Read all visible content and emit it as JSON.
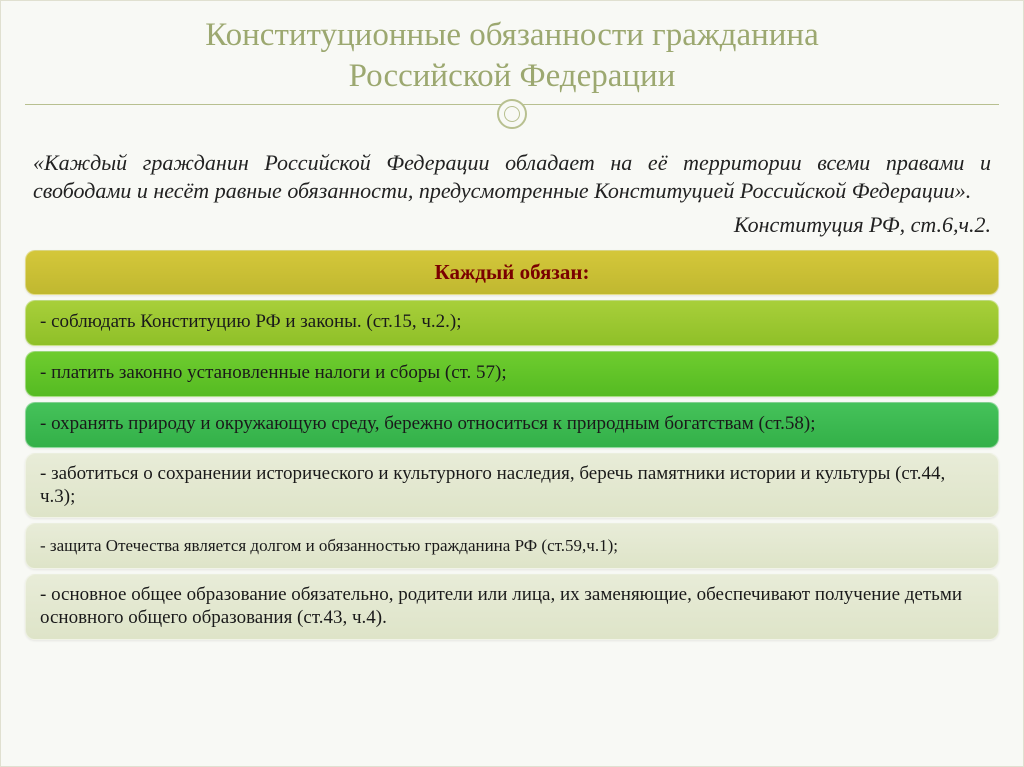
{
  "title_line1": "Конституционные обязанности гражданина",
  "title_line2": "Российской Федерации",
  "quote": "«Каждый гражданин Российской Федерации обладает на её территории всеми правами и свободами и несёт равные обязанности, предусмотренные Конституцией Российской Федерации».",
  "citation": "Конституция РФ, ст.6,ч.2.",
  "bands": [
    {
      "text": "Каждый обязан:",
      "header": true,
      "bg": "linear-gradient(to bottom, #d4c73a 0%, #c0b830 100%)"
    },
    {
      "text": "- соблюдать Конституцию РФ и законы. (ст.15, ч.2.);",
      "bg": "linear-gradient(to bottom, #a8cf3a 0%, #8fc028 100%)",
      "size": "big"
    },
    {
      "text": "- платить законно установленные налоги и сборы (ст. 57);",
      "bg": "linear-gradient(to bottom, #6fcc2f 0%, #55bb22 100%)",
      "size": "big"
    },
    {
      "text": "- охранять природу и окружающую среду, бережно относиться к природным богатствам (ст.58);",
      "bg": "linear-gradient(to bottom, #45c25a 0%, #33b048 100%)",
      "size": "med"
    },
    {
      "text": "- заботиться о сохранении исторического  и культурного наследия, беречь памятники истории и культуры (ст.44, ч.3);",
      "bg": "linear-gradient(to bottom, #e8ecd8 0%, #dee4c8 100%)",
      "size": "med"
    },
    {
      "text": "- защита Отечества является долгом и обязанностью гражданина РФ (ст.59,ч.1);",
      "bg": "linear-gradient(to bottom, #e8ecd8 0%, #dee4c8 100%)",
      "size": "sm"
    },
    {
      "text": "- основное общее образование обязательно, родители или лица, их заменяющие, обеспечивают получение детьми основного общего образования (ст.43, ч.4).",
      "bg": "linear-gradient(to bottom, #e8ecd8 0%, #dee4c8 100%)",
      "size": "med"
    }
  ],
  "colors": {
    "title_color": "#9ca870",
    "slide_bg": "#f8f9f5",
    "header_text": "#7a0000"
  }
}
